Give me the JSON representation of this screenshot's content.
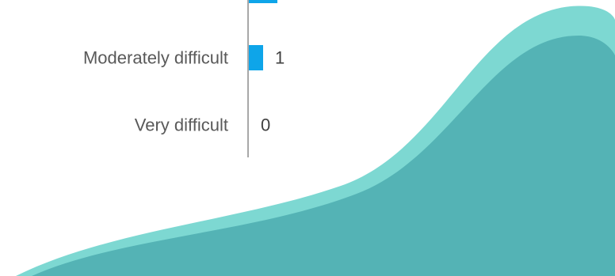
{
  "chart_data": {
    "type": "bar",
    "orientation": "horizontal",
    "categories": [
      "",
      "Moderately difficult",
      "Very difficult"
    ],
    "values": [
      2,
      1,
      0
    ],
    "value_labels": [
      "",
      "1",
      "0"
    ],
    "bar_color": "#0ea5e9",
    "axis_color": "#8c8c8c",
    "xlim": [
      0,
      6
    ]
  },
  "decoration": {
    "wave_light": "#7dd8d2",
    "wave_dark": "#54b3b5"
  }
}
